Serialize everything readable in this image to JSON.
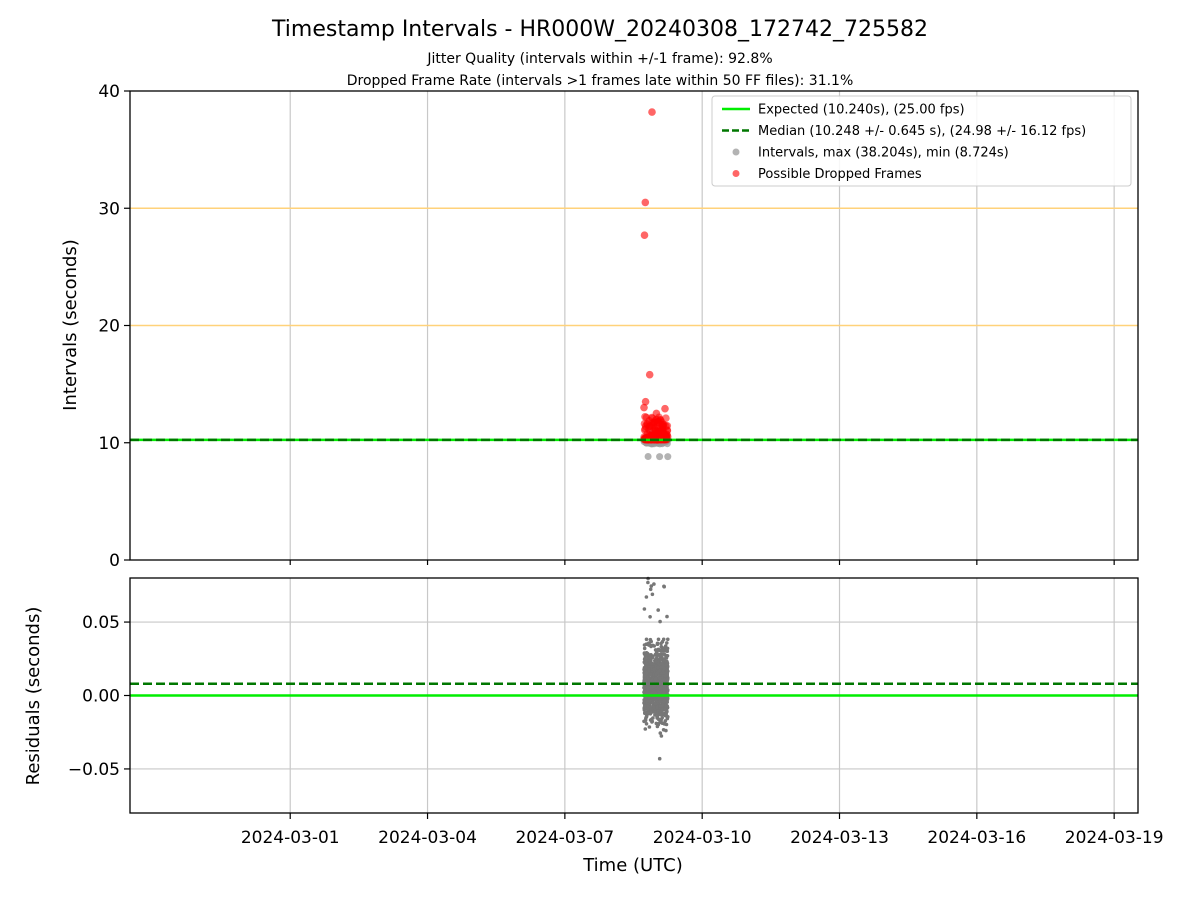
{
  "title": "Timestamp Intervals - HR000W_20240308_172742_725582",
  "subtitle_1": "Jitter Quality (intervals within +/-1 frame): 92.8%",
  "subtitle_2": "Dropped Frame Rate (intervals >1 frames late within 50 FF files): 31.1%",
  "colors": {
    "expected": "#00ee00",
    "median": "#007700",
    "intervals": "#999999",
    "dropped": "#ff0000",
    "reference_lines": "#ffd27a",
    "residuals": "#777777",
    "grid": "#c8c8c8"
  },
  "chart_data": [
    {
      "type": "scatter",
      "name": "intervals-panel",
      "xlabel": "",
      "ylabel": "Intervals (seconds)",
      "ylim": [
        0,
        40
      ],
      "yticks": [
        "0",
        "10",
        "20",
        "30",
        "40"
      ],
      "ytick_values": [
        0,
        10,
        20,
        30,
        40
      ],
      "xlim": [
        "2024-02-26T12:00",
        "2024-03-19T12:30"
      ],
      "grid": "x",
      "legend_position": "top-right",
      "reference_lines": [
        20,
        30
      ],
      "expected_value": 10.24,
      "median_value": 10.248,
      "legend": [
        {
          "label": "Expected (10.240s), (25.00 fps)",
          "kind": "line-solid"
        },
        {
          "label": "Median (10.248 +/- 0.645 s), (24.98 +/- 16.12 fps)",
          "kind": "line-dashed"
        },
        {
          "label": "Intervals, max (38.204s), min (8.724s)",
          "kind": "marker-gray"
        },
        {
          "label": "Possible Dropped Frames",
          "kind": "marker-red"
        }
      ],
      "time_span": [
        "2024-03-08T17:27",
        "2024-03-09T06:00"
      ],
      "max_interval": 38.204,
      "min_interval": 8.724,
      "dropped_frame_outliers": [
        {
          "t": "2024-03-08T17:45",
          "y": 27.7
        },
        {
          "t": "2024-03-08T18:10",
          "y": 30.5
        },
        {
          "t": "2024-03-08T21:40",
          "y": 38.2
        },
        {
          "t": "2024-03-08T20:30",
          "y": 15.8
        },
        {
          "t": "2024-03-08T18:20",
          "y": 13.5
        },
        {
          "t": "2024-03-08T17:30",
          "y": 13.0
        },
        {
          "t": "2024-03-09T04:30",
          "y": 12.9
        },
        {
          "t": "2024-03-09T00:00",
          "y": 12.5
        }
      ]
    },
    {
      "type": "scatter",
      "name": "residuals-panel",
      "xlabel": "Time (UTC)",
      "ylabel": "Residuals (seconds)",
      "ylim": [
        -0.08,
        0.08
      ],
      "yticks": [
        "−0.05",
        "0.00",
        "0.05"
      ],
      "ytick_values": [
        -0.05,
        0,
        0.05
      ],
      "xticks": [
        "2024-03-01",
        "2024-03-04",
        "2024-03-07",
        "2024-03-10",
        "2024-03-13",
        "2024-03-16",
        "2024-03-19"
      ],
      "xlim": [
        "2024-02-26T12:00",
        "2024-03-19T12:30"
      ],
      "grid": "both",
      "expected_value": 0.0,
      "median_value": 0.008,
      "residual_spread": [
        -0.043,
        0.08
      ]
    }
  ]
}
